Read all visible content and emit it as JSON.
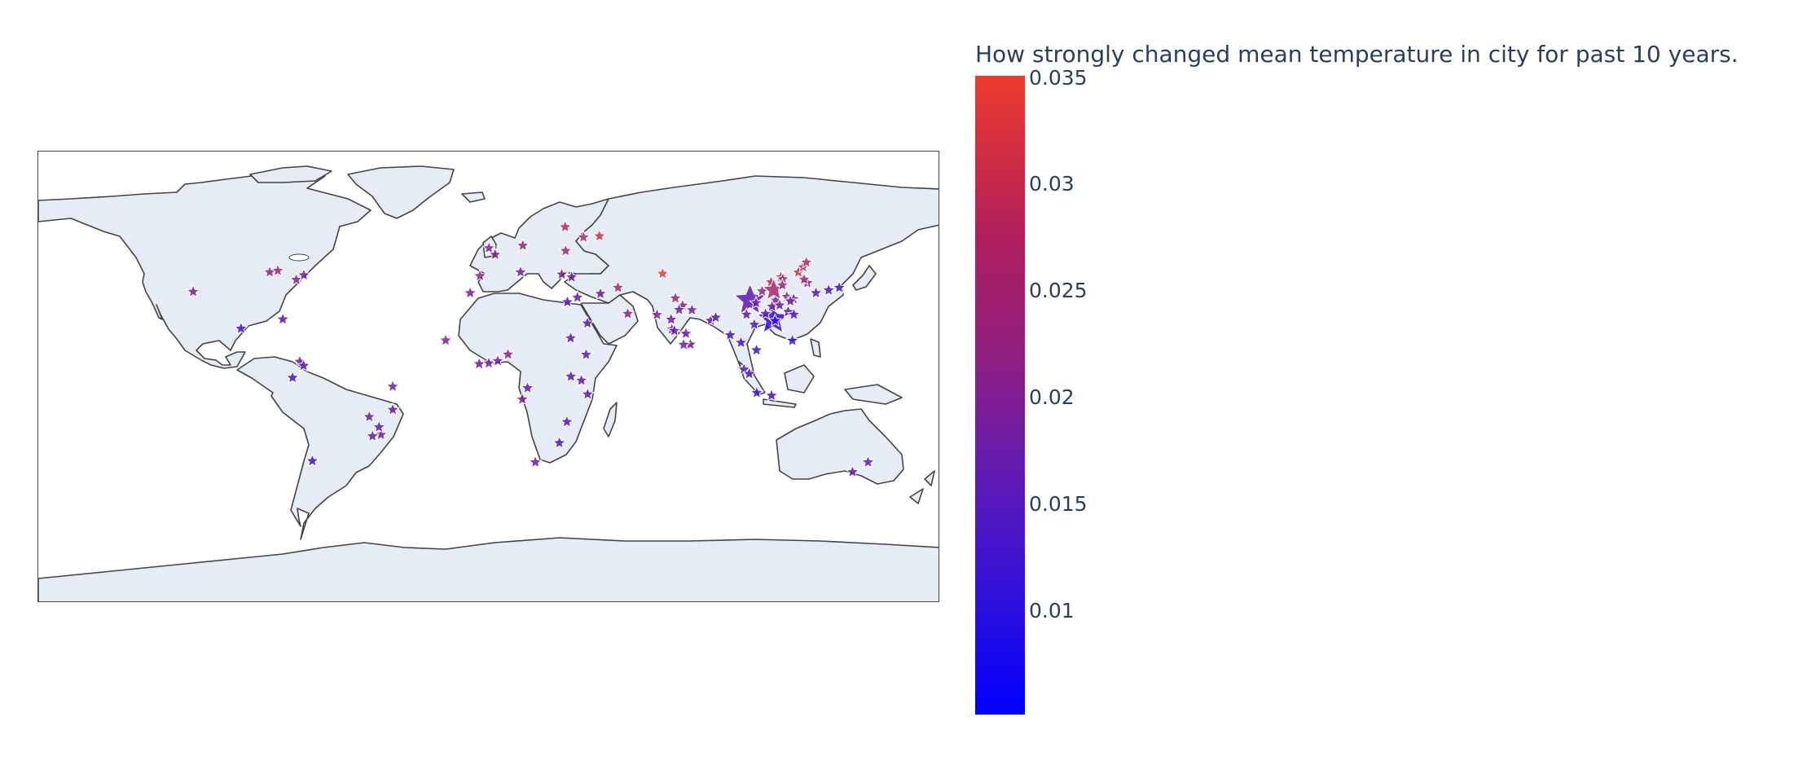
{
  "colorbar": {
    "title": "How strongly changed mean temperature in city for past 10 years.",
    "ticks": [
      "0.035",
      "0.03",
      "0.025",
      "0.02",
      "0.015",
      "0.01"
    ],
    "min_color": "#0000ff",
    "max_color": "#ef3b2c"
  },
  "map": {
    "projection": "equirectangular",
    "land_color": "#e5ecf6",
    "coastline_color": "#444444",
    "marker_symbol": "star"
  },
  "chart_data": {
    "type": "scatter",
    "marker_symbol": "star",
    "color_scale": [
      "#0000ff",
      "#ef3b2c"
    ],
    "color_range": [
      0.005,
      0.035
    ],
    "points": [
      {
        "lon": -118.2,
        "lat": 34.1,
        "value": 0.021
      },
      {
        "lon": -87.6,
        "lat": 41.9,
        "value": 0.024
      },
      {
        "lon": -84.4,
        "lat": 42.5,
        "value": 0.025
      },
      {
        "lon": -77.0,
        "lat": 38.9,
        "value": 0.022
      },
      {
        "lon": -74.0,
        "lat": 40.7,
        "value": 0.021
      },
      {
        "lon": -99.1,
        "lat": 19.4,
        "value": 0.013
      },
      {
        "lon": -82.4,
        "lat": 23.1,
        "value": 0.016
      },
      {
        "lon": -75.6,
        "lat": 6.2,
        "value": 0.017
      },
      {
        "lon": -74.1,
        "lat": 4.6,
        "value": 0.015
      },
      {
        "lon": -78.5,
        "lat": -0.2,
        "value": 0.014
      },
      {
        "lon": -70.6,
        "lat": -33.4,
        "value": 0.013
      },
      {
        "lon": -38.5,
        "lat": -3.7,
        "value": 0.02
      },
      {
        "lon": -43.2,
        "lat": -22.9,
        "value": 0.019
      },
      {
        "lon": -46.6,
        "lat": -23.5,
        "value": 0.018
      },
      {
        "lon": -47.9,
        "lat": -15.8,
        "value": 0.019
      },
      {
        "lon": -38.5,
        "lat": -12.97,
        "value": 0.018
      },
      {
        "lon": -44.0,
        "lat": -19.9,
        "value": 0.017
      },
      {
        "lon": -0.1,
        "lat": 51.5,
        "value": 0.022
      },
      {
        "lon": 2.35,
        "lat": 48.9,
        "value": 0.021
      },
      {
        "lon": -3.7,
        "lat": 40.4,
        "value": 0.022
      },
      {
        "lon": 13.4,
        "lat": 52.5,
        "value": 0.024
      },
      {
        "lon": 12.5,
        "lat": 41.9,
        "value": 0.02
      },
      {
        "lon": 37.6,
        "lat": 55.8,
        "value": 0.027
      },
      {
        "lon": 30.3,
        "lat": 59.9,
        "value": 0.028
      },
      {
        "lon": 44.0,
        "lat": 56.3,
        "value": 0.03
      },
      {
        "lon": 30.5,
        "lat": 50.4,
        "value": 0.025
      },
      {
        "lon": 28.98,
        "lat": 41.0,
        "value": 0.019
      },
      {
        "lon": 32.9,
        "lat": 39.9,
        "value": 0.018
      },
      {
        "lon": 35.2,
        "lat": 31.8,
        "value": 0.017
      },
      {
        "lon": 31.2,
        "lat": 30.0,
        "value": 0.015
      },
      {
        "lon": 39.2,
        "lat": 21.5,
        "value": 0.016
      },
      {
        "lon": 44.4,
        "lat": 33.3,
        "value": 0.018
      },
      {
        "lon": 51.4,
        "lat": 35.7,
        "value": 0.026
      },
      {
        "lon": 69.2,
        "lat": 41.3,
        "value": 0.034
      },
      {
        "lon": 55.3,
        "lat": 25.3,
        "value": 0.022
      },
      {
        "lon": -7.6,
        "lat": 33.6,
        "value": 0.02
      },
      {
        "lon": -17.4,
        "lat": 14.7,
        "value": 0.021
      },
      {
        "lon": -4.0,
        "lat": 5.3,
        "value": 0.018
      },
      {
        "lon": -0.2,
        "lat": 5.6,
        "value": 0.019
      },
      {
        "lon": 3.4,
        "lat": 6.5,
        "value": 0.02
      },
      {
        "lon": 7.5,
        "lat": 9.1,
        "value": 0.022
      },
      {
        "lon": 15.3,
        "lat": -4.3,
        "value": 0.018
      },
      {
        "lon": 13.2,
        "lat": -8.8,
        "value": 0.019
      },
      {
        "lon": 32.5,
        "lat": 15.6,
        "value": 0.017
      },
      {
        "lon": 38.7,
        "lat": 9.0,
        "value": 0.017
      },
      {
        "lon": 36.8,
        "lat": -1.3,
        "value": 0.018
      },
      {
        "lon": 39.3,
        "lat": -6.8,
        "value": 0.017
      },
      {
        "lon": 32.6,
        "lat": 0.3,
        "value": 0.016
      },
      {
        "lon": 31.0,
        "lat": -17.8,
        "value": 0.016
      },
      {
        "lon": 28.0,
        "lat": -26.2,
        "value": 0.015
      },
      {
        "lon": 18.4,
        "lat": -33.9,
        "value": 0.017
      },
      {
        "lon": 67.0,
        "lat": 24.9,
        "value": 0.021
      },
      {
        "lon": 74.3,
        "lat": 31.5,
        "value": 0.024
      },
      {
        "lon": 77.2,
        "lat": 28.6,
        "value": 0.022
      },
      {
        "lon": 72.9,
        "lat": 19.1,
        "value": 0.018
      },
      {
        "lon": 80.3,
        "lat": 13.1,
        "value": 0.017
      },
      {
        "lon": 77.6,
        "lat": 12.97,
        "value": 0.018
      },
      {
        "lon": 88.4,
        "lat": 22.6,
        "value": 0.017
      },
      {
        "lon": 78.5,
        "lat": 17.4,
        "value": 0.016
      },
      {
        "lon": 80.9,
        "lat": 26.8,
        "value": 0.02
      },
      {
        "lon": 75.8,
        "lat": 26.9,
        "value": 0.019
      },
      {
        "lon": 72.6,
        "lat": 23.0,
        "value": 0.019
      },
      {
        "lon": 73.9,
        "lat": 18.5,
        "value": 0.017
      },
      {
        "lon": 90.4,
        "lat": 23.8,
        "value": 0.016
      },
      {
        "lon": 96.2,
        "lat": 16.8,
        "value": 0.014
      },
      {
        "lon": 100.5,
        "lat": 13.8,
        "value": 0.013
      },
      {
        "lon": 106.7,
        "lat": 10.8,
        "value": 0.013
      },
      {
        "lon": 105.8,
        "lat": 21.0,
        "value": 0.015
      },
      {
        "lon": 101.7,
        "lat": 3.1,
        "value": 0.016
      },
      {
        "lon": 103.8,
        "lat": 1.35,
        "value": 0.014
      },
      {
        "lon": 106.8,
        "lat": -6.2,
        "value": 0.013
      },
      {
        "lon": 112.7,
        "lat": -7.3,
        "value": 0.014
      },
      {
        "lon": 121.0,
        "lat": 14.6,
        "value": 0.012
      },
      {
        "lon": 104.1,
        "lat": 30.7,
        "value": 0.017,
        "size": "large"
      },
      {
        "lon": 106.5,
        "lat": 29.6,
        "value": 0.019
      },
      {
        "lon": 108.9,
        "lat": 34.3,
        "value": 0.024
      },
      {
        "lon": 114.3,
        "lat": 30.6,
        "value": 0.021
      },
      {
        "lon": 113.3,
        "lat": 23.1,
        "value": 0.012,
        "size": "large"
      },
      {
        "lon": 114.1,
        "lat": 22.5,
        "value": 0.011
      },
      {
        "lon": 118.8,
        "lat": 32.1,
        "value": 0.022
      },
      {
        "lon": 121.5,
        "lat": 31.2,
        "value": 0.02
      },
      {
        "lon": 120.2,
        "lat": 30.3,
        "value": 0.019
      },
      {
        "lon": 116.4,
        "lat": 39.9,
        "value": 0.027
      },
      {
        "lon": 117.2,
        "lat": 39.1,
        "value": 0.026
      },
      {
        "lon": 112.5,
        "lat": 37.9,
        "value": 0.028
      },
      {
        "lon": 113.6,
        "lat": 34.7,
        "value": 0.026,
        "size": "medium"
      },
      {
        "lon": 117.0,
        "lat": 36.7,
        "value": 0.024
      },
      {
        "lon": 123.4,
        "lat": 41.8,
        "value": 0.03
      },
      {
        "lon": 125.3,
        "lat": 43.9,
        "value": 0.028
      },
      {
        "lon": 126.6,
        "lat": 45.8,
        "value": 0.027
      },
      {
        "lon": 126.98,
        "lat": 37.6,
        "value": 0.022
      },
      {
        "lon": 125.7,
        "lat": 39.0,
        "value": 0.024
      },
      {
        "lon": 119.3,
        "lat": 26.1,
        "value": 0.015
      },
      {
        "lon": 121.6,
        "lat": 25.0,
        "value": 0.014
      },
      {
        "lon": 112.9,
        "lat": 28.2,
        "value": 0.018
      },
      {
        "lon": 115.9,
        "lat": 28.7,
        "value": 0.017
      },
      {
        "lon": 110.3,
        "lat": 25.3,
        "value": 0.016
      },
      {
        "lon": 102.7,
        "lat": 25.0,
        "value": 0.017
      },
      {
        "lon": 139.7,
        "lat": 35.7,
        "value": 0.014
      },
      {
        "lon": 135.5,
        "lat": 34.7,
        "value": 0.015
      },
      {
        "lon": 130.4,
        "lat": 33.6,
        "value": 0.016
      },
      {
        "lon": 151.2,
        "lat": -33.9,
        "value": 0.018
      },
      {
        "lon": 145.0,
        "lat": -37.8,
        "value": 0.017
      }
    ]
  }
}
